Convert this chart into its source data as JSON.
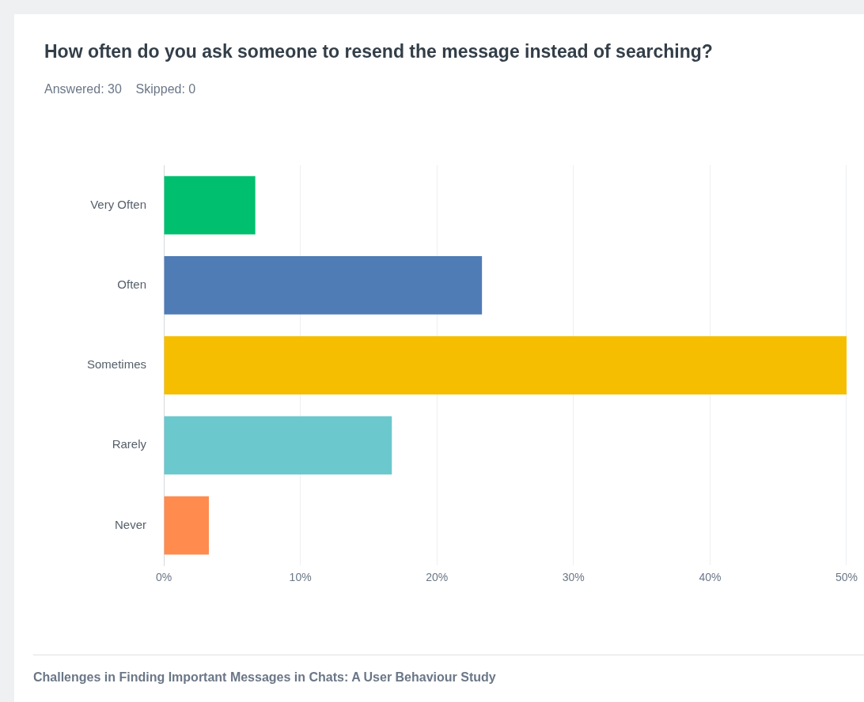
{
  "chart_data": {
    "type": "bar",
    "orientation": "horizontal",
    "title": "How often do you ask someone to resend the message instead of searching?",
    "subtitle": "Answered: 30    Skipped: 0",
    "categories": [
      "Very Often",
      "Often",
      "Sometimes",
      "Rarely",
      "Never"
    ],
    "values": [
      6.7,
      23.3,
      50,
      16.7,
      3.3
    ],
    "colors": [
      "#00bf6f",
      "#507cb6",
      "#f6be00",
      "#6bc8cd",
      "#ff8b4f"
    ],
    "xlim": [
      0,
      50
    ],
    "xticks": [
      {
        "value": 0,
        "label": "0%"
      },
      {
        "value": 10,
        "label": "10%"
      },
      {
        "value": 20,
        "label": "20%"
      },
      {
        "value": 30,
        "label": "30%"
      },
      {
        "value": 40,
        "label": "40%"
      },
      {
        "value": 50,
        "label": "50%"
      }
    ],
    "grid": "x",
    "legend": false,
    "annotations": [
      "Challenges in Finding Important Messages in Chats: A User Behaviour Study"
    ]
  }
}
